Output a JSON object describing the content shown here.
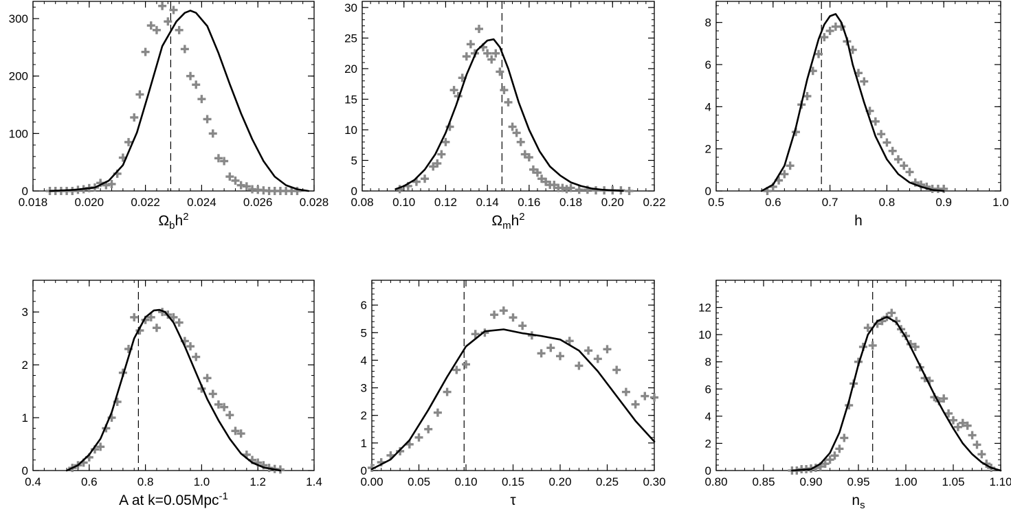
{
  "figure_title": "",
  "colors": {
    "curve": "#000000",
    "points": "#888888",
    "marker_line": "#000000",
    "frame": "#000000"
  },
  "chart_data": [
    {
      "type": "line",
      "title": "",
      "xlabel": {
        "main": "Ω",
        "sub": "b",
        "tail": "h",
        "sup": "2"
      },
      "ylabel": "",
      "xlim": [
        0.018,
        0.028
      ],
      "ylim": [
        0,
        330
      ],
      "xticks": [
        0.018,
        0.02,
        0.022,
        0.024,
        0.026,
        0.028
      ],
      "xtick_labels": [
        "0.018",
        "0.020",
        "0.022",
        "0.024",
        "0.026",
        "0.028"
      ],
      "yticks": [
        0,
        100,
        200,
        300
      ],
      "ytick_labels": [
        "0",
        "100",
        "200",
        "300"
      ],
      "marker_x": 0.0229,
      "curve": {
        "x": [
          0.0186,
          0.0195,
          0.0202,
          0.0207,
          0.0212,
          0.0217,
          0.0221,
          0.0226,
          0.0231,
          0.0234,
          0.0236,
          0.0238,
          0.0242,
          0.0246,
          0.025,
          0.0254,
          0.0258,
          0.0262,
          0.0266,
          0.027,
          0.0274,
          0.0278
        ],
        "y": [
          0,
          2,
          6,
          18,
          45,
          102,
          168,
          252,
          295,
          310,
          314,
          310,
          287,
          240,
          186,
          135,
          90,
          52,
          25,
          10,
          3,
          0
        ]
      },
      "points": {
        "x": [
          0.0186,
          0.0188,
          0.019,
          0.0192,
          0.0194,
          0.0196,
          0.0198,
          0.02,
          0.0202,
          0.0204,
          0.0206,
          0.0208,
          0.021,
          0.0212,
          0.0214,
          0.0216,
          0.0218,
          0.022,
          0.0222,
          0.0224,
          0.0226,
          0.0228,
          0.023,
          0.0232,
          0.0234,
          0.0236,
          0.0238,
          0.024,
          0.0242,
          0.0244,
          0.0246,
          0.0248,
          0.025,
          0.0252,
          0.0254,
          0.0256,
          0.0258,
          0.026,
          0.0262,
          0.0264,
          0.0266,
          0.0268,
          0.027,
          0.0272,
          0.0274
        ],
        "y": [
          0,
          0,
          0,
          0,
          0,
          2,
          3,
          5,
          6,
          14,
          10,
          12,
          30,
          58,
          85,
          128,
          168,
          242,
          288,
          280,
          322,
          295,
          315,
          280,
          247,
          200,
          185,
          160,
          125,
          100,
          57,
          52,
          25,
          18,
          10,
          8,
          3,
          2,
          1,
          0,
          0,
          0,
          0,
          0,
          0
        ]
      }
    },
    {
      "type": "line",
      "title": "",
      "xlabel": {
        "main": "Ω",
        "sub": "m",
        "tail": "h",
        "sup": "2"
      },
      "ylabel": "",
      "xlim": [
        0.08,
        0.22
      ],
      "ylim": [
        0,
        31
      ],
      "xticks": [
        0.08,
        0.1,
        0.12,
        0.14,
        0.16,
        0.18,
        0.2,
        0.22
      ],
      "xtick_labels": [
        "0.08",
        "0.10",
        "0.12",
        "0.14",
        "0.16",
        "0.18",
        "0.20",
        "0.22"
      ],
      "yticks": [
        0,
        5,
        10,
        15,
        20,
        25,
        30
      ],
      "ytick_labels": [
        "0",
        "5",
        "10",
        "15",
        "20",
        "25",
        "30"
      ],
      "marker_x": 0.147,
      "curve": {
        "x": [
          0.096,
          0.1,
          0.105,
          0.11,
          0.115,
          0.12,
          0.125,
          0.13,
          0.135,
          0.14,
          0.143,
          0.146,
          0.15,
          0.155,
          0.16,
          0.165,
          0.17,
          0.175,
          0.18,
          0.185,
          0.19,
          0.195,
          0.2,
          0.205
        ],
        "y": [
          0.3,
          0.8,
          1.8,
          3.5,
          6,
          9.5,
          14,
          19,
          23,
          24.6,
          24.8,
          23.5,
          20,
          14.5,
          10,
          6.5,
          4,
          2.5,
          1.4,
          0.8,
          0.4,
          0.2,
          0.1,
          0
        ]
      },
      "points": {
        "x": [
          0.098,
          0.102,
          0.106,
          0.11,
          0.114,
          0.116,
          0.118,
          0.12,
          0.122,
          0.124,
          0.126,
          0.128,
          0.13,
          0.132,
          0.134,
          0.136,
          0.138,
          0.14,
          0.142,
          0.144,
          0.146,
          0.148,
          0.15,
          0.152,
          0.154,
          0.156,
          0.158,
          0.16,
          0.162,
          0.164,
          0.166,
          0.168,
          0.17,
          0.172,
          0.174,
          0.176,
          0.178,
          0.18,
          0.184,
          0.188,
          0.192,
          0.196,
          0.2,
          0.204,
          0.208
        ],
        "y": [
          0.3,
          0.8,
          1.5,
          2,
          4,
          4.5,
          6,
          8,
          10.5,
          16.5,
          15.5,
          18.5,
          22,
          24,
          22.5,
          26.5,
          23.5,
          22.5,
          21.5,
          22.5,
          19.5,
          16.5,
          14.5,
          10.5,
          9.5,
          8,
          6,
          5.5,
          3.5,
          3,
          2,
          1.5,
          1,
          1,
          0.5,
          0.5,
          0.3,
          0.5,
          0.2,
          0.2,
          0.1,
          0.1,
          0.1,
          0.1,
          0
        ]
      }
    },
    {
      "type": "line",
      "title": "",
      "xlabel": {
        "main": "h",
        "sub": "",
        "tail": "",
        "sup": ""
      },
      "ylabel": "",
      "xlim": [
        0.5,
        1.0
      ],
      "ylim": [
        0,
        9
      ],
      "xticks": [
        0.5,
        0.6,
        0.7,
        0.8,
        0.9,
        1.0
      ],
      "xtick_labels": [
        "0.5",
        "0.6",
        "0.7",
        "0.8",
        "0.9",
        "1.0"
      ],
      "yticks": [
        0,
        2,
        4,
        6,
        8
      ],
      "ytick_labels": [
        "0",
        "2",
        "4",
        "6",
        "8"
      ],
      "marker_x": 0.685,
      "curve": {
        "x": [
          0.58,
          0.6,
          0.62,
          0.64,
          0.66,
          0.68,
          0.69,
          0.7,
          0.71,
          0.72,
          0.73,
          0.74,
          0.76,
          0.78,
          0.8,
          0.82,
          0.84,
          0.86,
          0.88,
          0.9
        ],
        "y": [
          0,
          0.3,
          1.2,
          3,
          5.3,
          7.2,
          7.9,
          8.3,
          8.4,
          8,
          7.2,
          6,
          4.2,
          2.6,
          1.5,
          0.8,
          0.4,
          0.2,
          0.05,
          0
        ]
      },
      "points": {
        "x": [
          0.59,
          0.6,
          0.61,
          0.62,
          0.63,
          0.64,
          0.65,
          0.66,
          0.67,
          0.68,
          0.69,
          0.7,
          0.71,
          0.72,
          0.73,
          0.74,
          0.75,
          0.76,
          0.77,
          0.78,
          0.79,
          0.8,
          0.81,
          0.82,
          0.83,
          0.84,
          0.85,
          0.86,
          0.87,
          0.88,
          0.89,
          0.9
        ],
        "y": [
          0,
          0.2,
          0.5,
          0.8,
          1.2,
          2.8,
          4.1,
          4.5,
          5.7,
          6.5,
          7.3,
          7.6,
          7.8,
          7.8,
          7.1,
          6.7,
          5.6,
          5.2,
          3.8,
          3.3,
          2.7,
          2.3,
          1.9,
          1.5,
          1.2,
          0.9,
          0.4,
          0.3,
          0.2,
          0.1,
          0.1,
          0.1
        ]
      }
    },
    {
      "type": "line",
      "title": "",
      "xlabel": {
        "main": "A at k=0.05Mpc",
        "sub": "",
        "tail": "",
        "sup": "-1"
      },
      "ylabel": "",
      "xlim": [
        0.4,
        1.4
      ],
      "ylim": [
        0,
        3.6
      ],
      "xticks": [
        0.4,
        0.6,
        0.8,
        1.0,
        1.2,
        1.4
      ],
      "xtick_labels": [
        "0.4",
        "0.6",
        "0.8",
        "1.0",
        "1.2",
        "1.4"
      ],
      "yticks": [
        0,
        1,
        2,
        3
      ],
      "ytick_labels": [
        "0",
        "1",
        "2",
        "3"
      ],
      "marker_x": 0.775,
      "curve": {
        "x": [
          0.52,
          0.56,
          0.6,
          0.64,
          0.68,
          0.72,
          0.76,
          0.8,
          0.83,
          0.85,
          0.87,
          0.9,
          0.94,
          0.98,
          1.02,
          1.06,
          1.1,
          1.14,
          1.18,
          1.22,
          1.26,
          1.28
        ],
        "y": [
          0,
          0.1,
          0.3,
          0.6,
          1.1,
          1.8,
          2.5,
          2.9,
          3.03,
          3.04,
          3,
          2.8,
          2.35,
          1.85,
          1.35,
          0.95,
          0.6,
          0.32,
          0.15,
          0.06,
          0.02,
          0
        ]
      },
      "points": {
        "x": [
          0.54,
          0.56,
          0.58,
          0.6,
          0.62,
          0.64,
          0.66,
          0.68,
          0.7,
          0.72,
          0.74,
          0.76,
          0.78,
          0.8,
          0.82,
          0.84,
          0.86,
          0.88,
          0.9,
          0.92,
          0.94,
          0.96,
          0.98,
          1.0,
          1.02,
          1.04,
          1.06,
          1.08,
          1.1,
          1.12,
          1.14,
          1.16,
          1.18,
          1.2,
          1.22,
          1.24,
          1.26,
          1.28
        ],
        "y": [
          0.05,
          0.1,
          0.15,
          0.25,
          0.4,
          0.45,
          0.8,
          1,
          1.3,
          1.85,
          2.3,
          2.9,
          2.65,
          2.85,
          2.9,
          2.7,
          3,
          2.95,
          2.9,
          2.8,
          2.45,
          2.35,
          2.15,
          1.55,
          1.75,
          1.45,
          1.25,
          1.2,
          1.05,
          0.75,
          0.7,
          0.3,
          0.2,
          0.15,
          0.1,
          0.05,
          0.03,
          0.02
        ]
      }
    },
    {
      "type": "line",
      "title": "",
      "xlabel": {
        "main": "τ",
        "sub": "",
        "tail": "",
        "sup": ""
      },
      "ylabel": "",
      "xlim": [
        0.0,
        0.3
      ],
      "ylim": [
        0,
        6.9
      ],
      "xticks": [
        0.0,
        0.05,
        0.1,
        0.15,
        0.2,
        0.25,
        0.3
      ],
      "xtick_labels": [
        "0.00",
        "0.05",
        "0.10",
        "0.15",
        "0.20",
        "0.25",
        "0.30"
      ],
      "yticks": [
        0,
        1,
        2,
        3,
        4,
        5,
        6
      ],
      "ytick_labels": [
        "0",
        "1",
        "2",
        "3",
        "4",
        "5",
        "6"
      ],
      "marker_x": 0.098,
      "curve": {
        "x": [
          0.0,
          0.02,
          0.04,
          0.06,
          0.08,
          0.1,
          0.12,
          0.14,
          0.16,
          0.18,
          0.2,
          0.22,
          0.24,
          0.26,
          0.28,
          0.3
        ],
        "y": [
          0.05,
          0.4,
          1.1,
          2.2,
          3.4,
          4.5,
          5.05,
          5.12,
          4.98,
          4.88,
          4.75,
          4.35,
          3.6,
          2.7,
          1.8,
          1.05
        ]
      },
      "points": {
        "x": [
          0.0,
          0.01,
          0.02,
          0.03,
          0.04,
          0.05,
          0.06,
          0.07,
          0.08,
          0.09,
          0.1,
          0.11,
          0.12,
          0.13,
          0.14,
          0.15,
          0.16,
          0.17,
          0.18,
          0.19,
          0.2,
          0.21,
          0.22,
          0.23,
          0.24,
          0.25,
          0.26,
          0.27,
          0.28,
          0.29,
          0.3
        ],
        "y": [
          0.1,
          0.3,
          0.55,
          0.7,
          0.95,
          1.2,
          1.5,
          2.1,
          2.85,
          3.65,
          3.85,
          4.95,
          5.0,
          5.65,
          5.8,
          5.55,
          5.25,
          4.9,
          4.25,
          4.45,
          4.15,
          4.7,
          3.8,
          4.35,
          4.05,
          4.4,
          3.65,
          2.85,
          2.4,
          2.7,
          2.65
        ]
      }
    },
    {
      "type": "line",
      "title": "",
      "xlabel": {
        "main": "n",
        "sub": "s",
        "tail": "",
        "sup": ""
      },
      "ylabel": "",
      "xlim": [
        0.8,
        1.1
      ],
      "ylim": [
        0,
        14
      ],
      "xticks": [
        0.8,
        0.85,
        0.9,
        0.95,
        1.0,
        1.05,
        1.1
      ],
      "xtick_labels": [
        "0.80",
        "0.85",
        "0.90",
        "0.95",
        "1.00",
        "1.05",
        "1.10"
      ],
      "yticks": [
        0,
        2,
        4,
        6,
        8,
        10,
        12
      ],
      "ytick_labels": [
        "0",
        "2",
        "4",
        "6",
        "8",
        "10",
        "12"
      ],
      "marker_x": 0.965,
      "curve": {
        "x": [
          0.88,
          0.9,
          0.91,
          0.92,
          0.93,
          0.94,
          0.95,
          0.96,
          0.97,
          0.98,
          0.99,
          1.0,
          1.01,
          1.02,
          1.03,
          1.04,
          1.05,
          1.06,
          1.07,
          1.08,
          1.09,
          1.1
        ],
        "y": [
          0,
          0.1,
          0.5,
          1.3,
          2.8,
          5.1,
          7.8,
          10,
          11,
          11.3,
          10.9,
          9.8,
          8.4,
          7,
          5.6,
          4.3,
          3.1,
          2,
          1.2,
          0.6,
          0.2,
          0
        ]
      },
      "points": {
        "x": [
          0.88,
          0.885,
          0.89,
          0.895,
          0.9,
          0.905,
          0.91,
          0.915,
          0.92,
          0.925,
          0.93,
          0.935,
          0.94,
          0.945,
          0.95,
          0.955,
          0.96,
          0.965,
          0.97,
          0.975,
          0.98,
          0.985,
          0.99,
          0.995,
          1.0,
          1.005,
          1.01,
          1.015,
          1.02,
          1.025,
          1.03,
          1.035,
          1.04,
          1.045,
          1.05,
          1.055,
          1.06,
          1.065,
          1.07,
          1.075,
          1.08,
          1.085,
          1.09
        ],
        "y": [
          0,
          0,
          0.1,
          0.1,
          0.15,
          0.2,
          0.3,
          0.5,
          0.8,
          1.1,
          1.6,
          2.4,
          4.8,
          6.4,
          8,
          9.1,
          10.5,
          9.2,
          10.8,
          11,
          11.3,
          11.6,
          11,
          10.4,
          9.9,
          9.3,
          9.1,
          7.6,
          6.8,
          6.6,
          5.4,
          5.1,
          5.3,
          4.2,
          3.7,
          3.2,
          3.5,
          3.3,
          2.6,
          1.9,
          1.2,
          0.5,
          0.2
        ]
      }
    }
  ]
}
